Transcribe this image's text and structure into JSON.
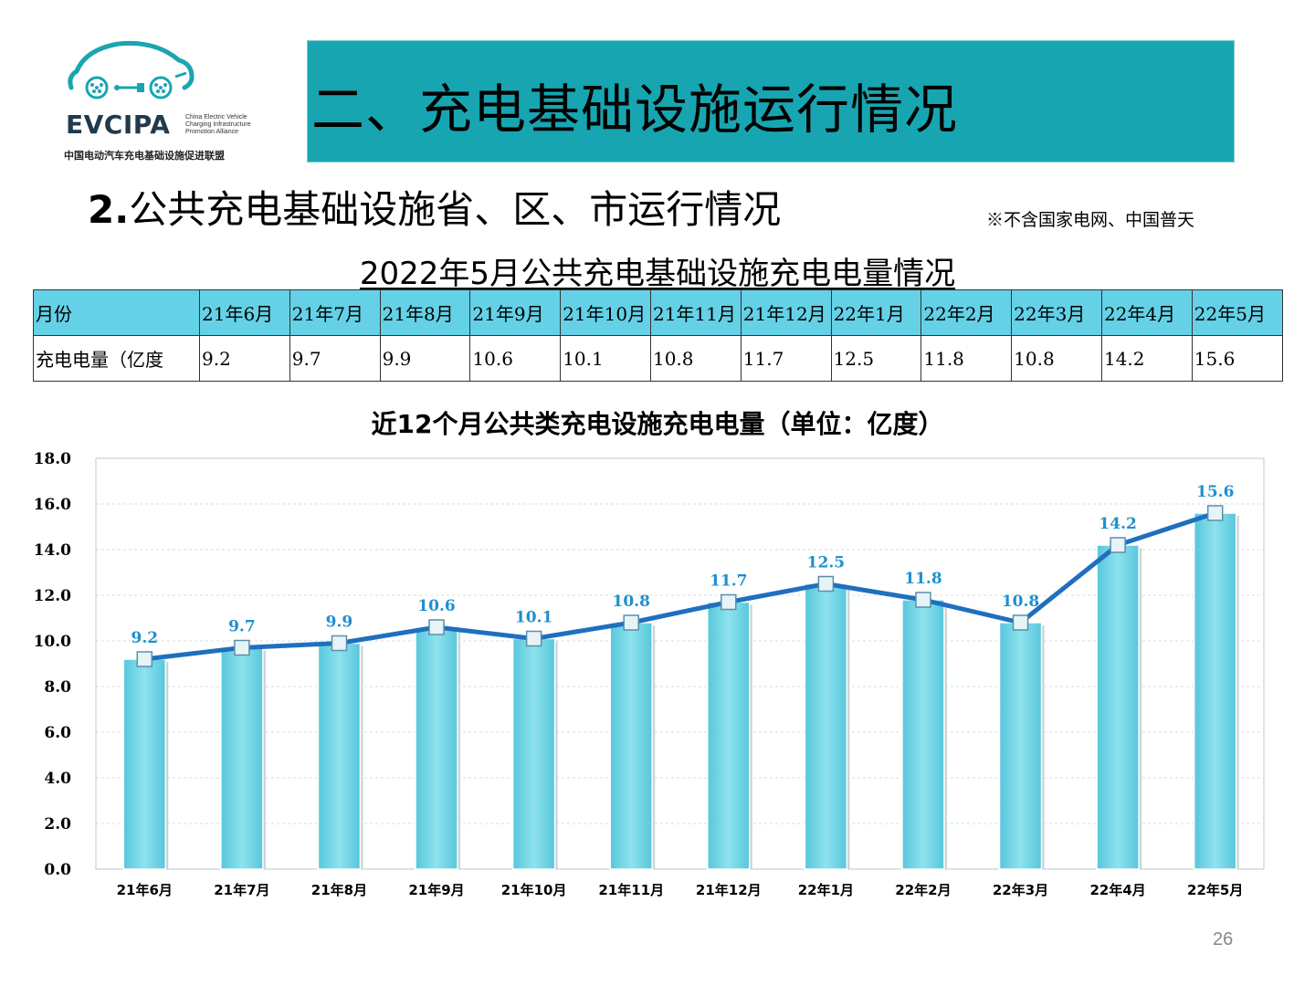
{
  "logo": {
    "name": "EVCIPA",
    "english_lines": [
      "China Electric Vehicle",
      "Charging Infrastructure",
      "Promotion Alliance"
    ],
    "chinese": "中国电动汽车充电基础设施促进联盟",
    "icon": "car-outline-logo-icon",
    "color": "#1aa5b0"
  },
  "header": {
    "title": "二、充电基础设施运行情况",
    "banner_color": "#17a6b1"
  },
  "section": {
    "number": "2.",
    "title": "公共充电基础设施省、区、市运行情况"
  },
  "note": "※不含国家电网、中国普天",
  "table": {
    "title": "2022年5月公共充电基础设施充电电量情况",
    "header_label": "月份",
    "row_label": "充电电量（亿度",
    "months": [
      "21年6月",
      "21年7月",
      "21年8月",
      "21年9月",
      "21年10月",
      "21年11月",
      "21年12月",
      "22年1月",
      "22年2月",
      "22年3月",
      "22年4月",
      "22年5月"
    ],
    "values": [
      "9.2",
      "9.7",
      "9.9",
      "10.6",
      "10.1",
      "10.8",
      "11.7",
      "12.5",
      "11.8",
      "10.8",
      "14.2",
      "15.6"
    ],
    "header_color": "#64d1e6"
  },
  "chart_data": {
    "type": "bar",
    "title": "近12个月公共类充电设施充电电量（单位：亿度）",
    "categories": [
      "21年6月",
      "21年7月",
      "21年8月",
      "21年9月",
      "21年10月",
      "21年11月",
      "21年12月",
      "22年1月",
      "22年2月",
      "22年3月",
      "22年4月",
      "22年5月"
    ],
    "series": [
      {
        "type": "bar",
        "values": [
          9.2,
          9.7,
          9.9,
          10.6,
          10.1,
          10.8,
          11.7,
          12.5,
          11.8,
          10.8,
          14.2,
          15.6
        ],
        "color": "#6fd3e3"
      },
      {
        "type": "line",
        "values": [
          9.2,
          9.7,
          9.9,
          10.6,
          10.1,
          10.8,
          11.7,
          12.5,
          11.8,
          10.8,
          14.2,
          15.6
        ],
        "color": "#1f6fbf"
      }
    ],
    "data_labels": [
      "9.2",
      "9.7",
      "9.9",
      "10.6",
      "10.1",
      "10.8",
      "11.7",
      "12.5",
      "11.8",
      "10.8",
      "14.2",
      "15.6"
    ],
    "y_ticks": [
      "0.0",
      "2.0",
      "4.0",
      "6.0",
      "8.0",
      "10.0",
      "12.0",
      "14.0",
      "16.0",
      "18.0"
    ],
    "ylim": [
      0,
      18
    ],
    "grid": true,
    "label_color": "#1e90d0"
  },
  "page_number": "26"
}
